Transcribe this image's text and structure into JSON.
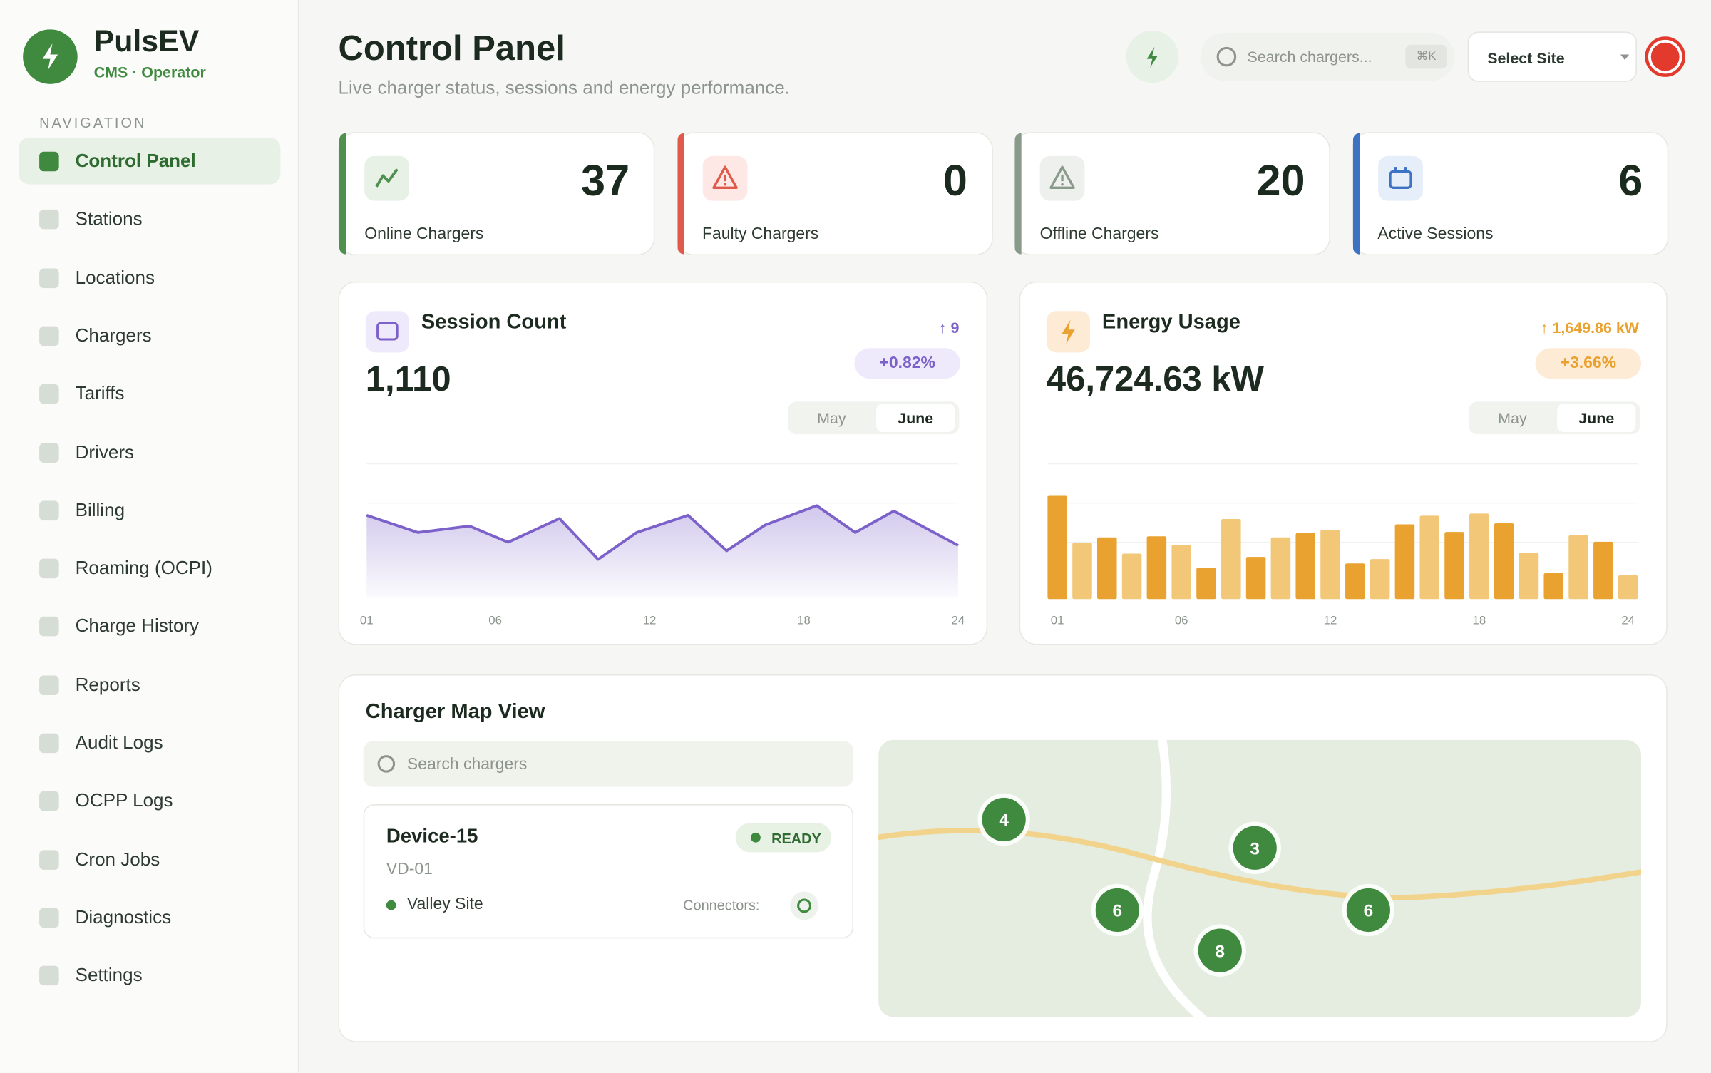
{
  "sidebar": {
    "brand": "PulsEV",
    "tagline": "CMS · Operator",
    "nav_heading": "NAVIGATION",
    "active": 0,
    "nav": [
      "Control Panel",
      "Stations",
      "Locations",
      "Chargers",
      "Tariffs",
      "Drivers",
      "Billing",
      "Roaming (OCPI)",
      "Charge History",
      "Reports",
      "Audit Logs",
      "OCPP Logs",
      "Cron Jobs",
      "Diagnostics",
      "Settings"
    ]
  },
  "header": {
    "title": "Control Panel",
    "subtitle": "Live charger status, sessions and energy performance.",
    "search_placeholder": "Search chargers...",
    "shortcut": "⌘K",
    "site_select": "Select Site"
  },
  "kpis": [
    {
      "label": "Online Chargers",
      "value": 37,
      "color": "#4f8f4f"
    },
    {
      "label": "Faulty Chargers",
      "value": 0,
      "color": "#e05a4b"
    },
    {
      "label": "Offline Chargers",
      "value": 20,
      "color": "#8a9a8a"
    },
    {
      "label": "Active Sessions",
      "value": 6,
      "color": "#3d73c4"
    }
  ],
  "chart_data": [
    {
      "type": "line",
      "title": "Session Count",
      "total": "1,110",
      "change": "↑ 9",
      "change_pct": "+0.82%",
      "periods": [
        "May",
        "June"
      ],
      "active_period": 1,
      "x": [
        1,
        3,
        5,
        6.5,
        8.5,
        10,
        11.5,
        13.5,
        15,
        16.5,
        18.5,
        20,
        21.5,
        24
      ],
      "series": [
        {
          "color": "#7b61c9",
          "values": [
            77,
            61,
            67,
            52,
            74,
            36,
            61,
            77,
            44,
            68,
            86,
            61,
            81,
            49
          ]
        }
      ],
      "xlim": [
        1,
        24
      ],
      "xticks": [
        {
          "value": 1,
          "label": "01"
        },
        {
          "value": 6,
          "label": "06"
        },
        {
          "value": 12,
          "label": "12"
        },
        {
          "value": 18,
          "label": "18"
        },
        {
          "value": 24,
          "label": "24"
        }
      ],
      "ylim": [
        0,
        125
      ]
    },
    {
      "type": "bar",
      "title": "Energy Usage",
      "total": "46,724.63 kW",
      "change": "↑ 1,649.86 kW",
      "change_pct": "+3.66%",
      "periods": [
        "May",
        "June"
      ],
      "active_period": 1,
      "categories": [
        "01",
        null,
        null,
        null,
        null,
        "06",
        null,
        null,
        null,
        null,
        null,
        "12",
        null,
        null,
        null,
        null,
        null,
        "18",
        null,
        null,
        null,
        null,
        null,
        "24"
      ],
      "values": [
        96,
        52,
        57,
        42,
        58,
        50,
        29,
        74,
        39,
        57,
        61,
        64,
        33,
        37,
        69,
        77,
        62,
        79,
        70,
        43,
        24,
        59,
        53,
        22
      ],
      "colors": [
        "#e9a22f",
        "#f2c777"
      ],
      "ylim": [
        0,
        125
      ]
    }
  ],
  "map": {
    "title": "Charger Map View",
    "search_placeholder": "Search chargers",
    "device": {
      "name": "Device-15",
      "id": "VD-01",
      "status": "READY",
      "site": "Valley Site",
      "connectors_label": "Connectors:"
    },
    "markers": [
      "4",
      "3",
      "6",
      "6",
      "8"
    ]
  }
}
